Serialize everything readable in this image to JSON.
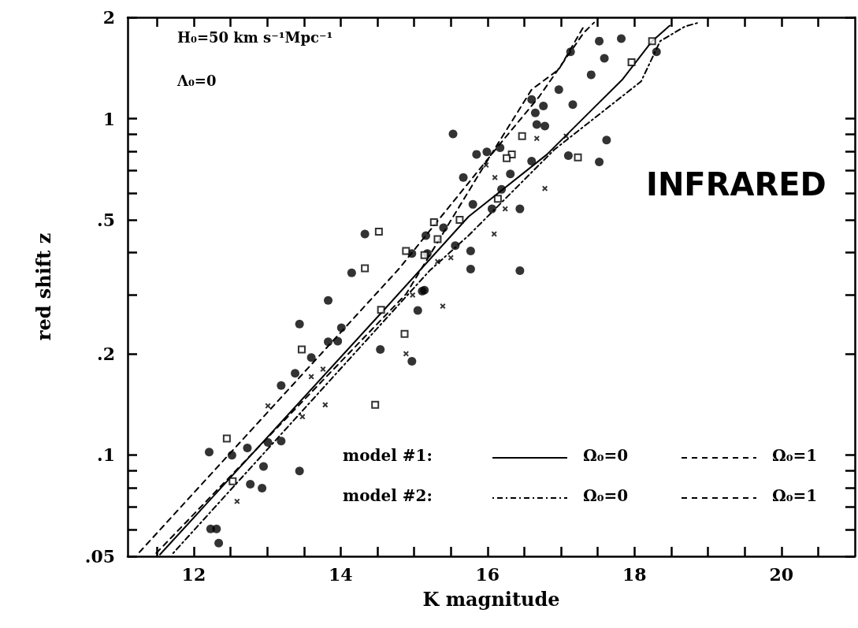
{
  "chart_data": {
    "type": "scatter",
    "xlabel": "K magnitude",
    "ylabel": "red shift z",
    "log": "y",
    "legend": "bottom right",
    "xlim": [
      11.1,
      21
    ],
    "ylim": [
      0.05,
      2
    ],
    "xticks": [
      {
        "value": 11.5,
        "label": null
      },
      12,
      {
        "value": 12.5,
        "label": null
      },
      {
        "value": 13,
        "label": null
      },
      {
        "value": 13.5,
        "label": null
      },
      14,
      {
        "value": 14.5,
        "label": null
      },
      {
        "value": 15,
        "label": null
      },
      {
        "value": 15.5,
        "label": null
      },
      16,
      {
        "value": 16.5,
        "label": null
      },
      {
        "value": 17,
        "label": null
      },
      {
        "value": 17.5,
        "label": null
      },
      18,
      {
        "value": 18.5,
        "label": null
      },
      {
        "value": 19,
        "label": null
      },
      {
        "value": 19.5,
        "label": null
      },
      20,
      {
        "value": 20.5,
        "label": null
      }
    ],
    "yticks": [
      {
        "value": 0.05,
        "label": ".05"
      },
      {
        "value": 0.06,
        "label": null
      },
      {
        "value": 0.07,
        "label": null
      },
      {
        "value": 0.08,
        "label": null
      },
      {
        "value": 0.09,
        "label": null
      },
      {
        "value": 0.1,
        "label": ".1"
      },
      {
        "value": 0.2,
        "label": ".2"
      },
      {
        "value": 0.3,
        "label": null
      },
      {
        "value": 0.4,
        "label": null
      },
      {
        "value": 0.5,
        "label": ".5"
      },
      {
        "value": 0.6,
        "label": null
      },
      {
        "value": 0.7,
        "label": null
      },
      {
        "value": 0.8,
        "label": null
      },
      {
        "value": 0.9,
        "label": null
      },
      1,
      2
    ],
    "annotations": [
      "H₀=50 km s⁻¹Mpc⁻¹",
      "Λ₀=0",
      "INFRARED",
      "model #1:",
      "model #2:"
    ],
    "series": [
      {
        "marker": "circle",
        "color": "#000000",
        "x": [
          12.21,
          12.34,
          12.23,
          12.31,
          12.52,
          12.73,
          12.95,
          12.77,
          12.93,
          13.01,
          13.19,
          13.44,
          13.38,
          13.19,
          13.6,
          13.44,
          13.83,
          13.83,
          13.96,
          14.01,
          14.15,
          14.54,
          15.05,
          15.11,
          14.97,
          15.77,
          15.53,
          15.67,
          15.8,
          15.4,
          15.16,
          15.18,
          14.97,
          14.33,
          15.56,
          15.77,
          15.85,
          15.99,
          16.06,
          15.14,
          16.17,
          16.31,
          16.19,
          16.44,
          16.44,
          16.6,
          16.65,
          16.76,
          16.67,
          16.78,
          16.6,
          16.97,
          17.16,
          17.1,
          17.52,
          17.62,
          17.41,
          17.59,
          17.52,
          17.82,
          18.3,
          17.13
        ],
        "values": [
          0.102,
          0.0547,
          0.0603,
          0.0603,
          0.0998,
          0.105,
          0.0925,
          0.0819,
          0.0797,
          0.109,
          0.11,
          0.0896,
          0.175,
          0.161,
          0.195,
          0.245,
          0.288,
          0.217,
          0.218,
          0.239,
          0.348,
          0.206,
          0.269,
          0.307,
          0.19,
          0.357,
          0.9,
          0.668,
          0.556,
          0.474,
          0.449,
          0.397,
          0.397,
          0.454,
          0.419,
          0.404,
          0.783,
          0.796,
          0.539,
          0.309,
          0.819,
          0.685,
          0.616,
          0.539,
          0.353,
          0.747,
          1.04,
          1.09,
          0.96,
          0.95,
          1.14,
          1.22,
          1.1,
          0.776,
          0.743,
          0.863,
          1.35,
          1.51,
          1.7,
          1.73,
          1.58,
          1.58
        ]
      },
      {
        "marker": "square",
        "color": "#000000",
        "x": [
          12.45,
          12.53,
          13.47,
          14.47,
          14.87,
          14.55,
          14.52,
          14.33,
          15.32,
          15.62,
          14.89,
          15.14,
          15.27,
          16.47,
          16.33,
          16.26,
          17.23,
          16.14,
          18.24,
          17.96
        ],
        "values": [
          0.112,
          0.0836,
          0.206,
          0.141,
          0.229,
          0.27,
          0.461,
          0.359,
          0.438,
          0.5,
          0.404,
          0.393,
          0.492,
          0.887,
          0.783,
          0.763,
          0.767,
          0.578,
          1.7,
          1.47
        ]
      },
      {
        "marker": "cross",
        "color": "#000000",
        "x": [
          12.59,
          13.01,
          13.48,
          13.6,
          13.76,
          13.79,
          14.98,
          15.39,
          14.89,
          16.1,
          16.09,
          15.32,
          15.5,
          15.98,
          16.67,
          17.07,
          16.24,
          16.78
        ],
        "values": [
          0.0728,
          0.14,
          0.13,
          0.171,
          0.18,
          0.141,
          0.299,
          0.277,
          0.2,
          0.668,
          0.454,
          0.376,
          0.386,
          0.728,
          0.873,
          0.887,
          0.539,
          0.62
        ]
      },
      {
        "type": "line",
        "name": "Ω₀=0",
        "line_style": "solid",
        "color": "#000000",
        "x": [
          11.54,
          14.61,
          15.74,
          16.81,
          17.84,
          18.24,
          18.48
        ],
        "values": [
          0.0506,
          0.273,
          0.511,
          0.783,
          1.31,
          1.7,
          1.89
        ]
      },
      {
        "type": "line",
        "name": "Ω₀=1",
        "line_style": "dashed",
        "color": "#000000",
        "x": [
          11.26,
          14.79,
          16.17,
          16.7,
          17.31,
          17.45
        ],
        "values": [
          0.0514,
          0.357,
          0.841,
          1.16,
          1.8,
          1.93
        ]
      },
      {
        "type": "line",
        "name": "Ω₀=0",
        "line_style": "dotted",
        "color": "#000000",
        "x": [
          11.72,
          15.21,
          15.74,
          16.91,
          18.09,
          18.35,
          18.69,
          18.88
        ],
        "values": [
          0.0511,
          0.353,
          0.449,
          0.809,
          1.29,
          1.7,
          1.88,
          1.93
        ]
      },
      {
        "type": "line",
        "name": "Ω₀=1",
        "line_style": "dashed",
        "color": "#000000",
        "x": [
          11.49,
          14.89,
          15.96,
          16.6,
          16.97,
          17.31
        ],
        "values": [
          0.0511,
          0.301,
          0.728,
          1.22,
          1.4,
          1.88
        ]
      }
    ]
  }
}
